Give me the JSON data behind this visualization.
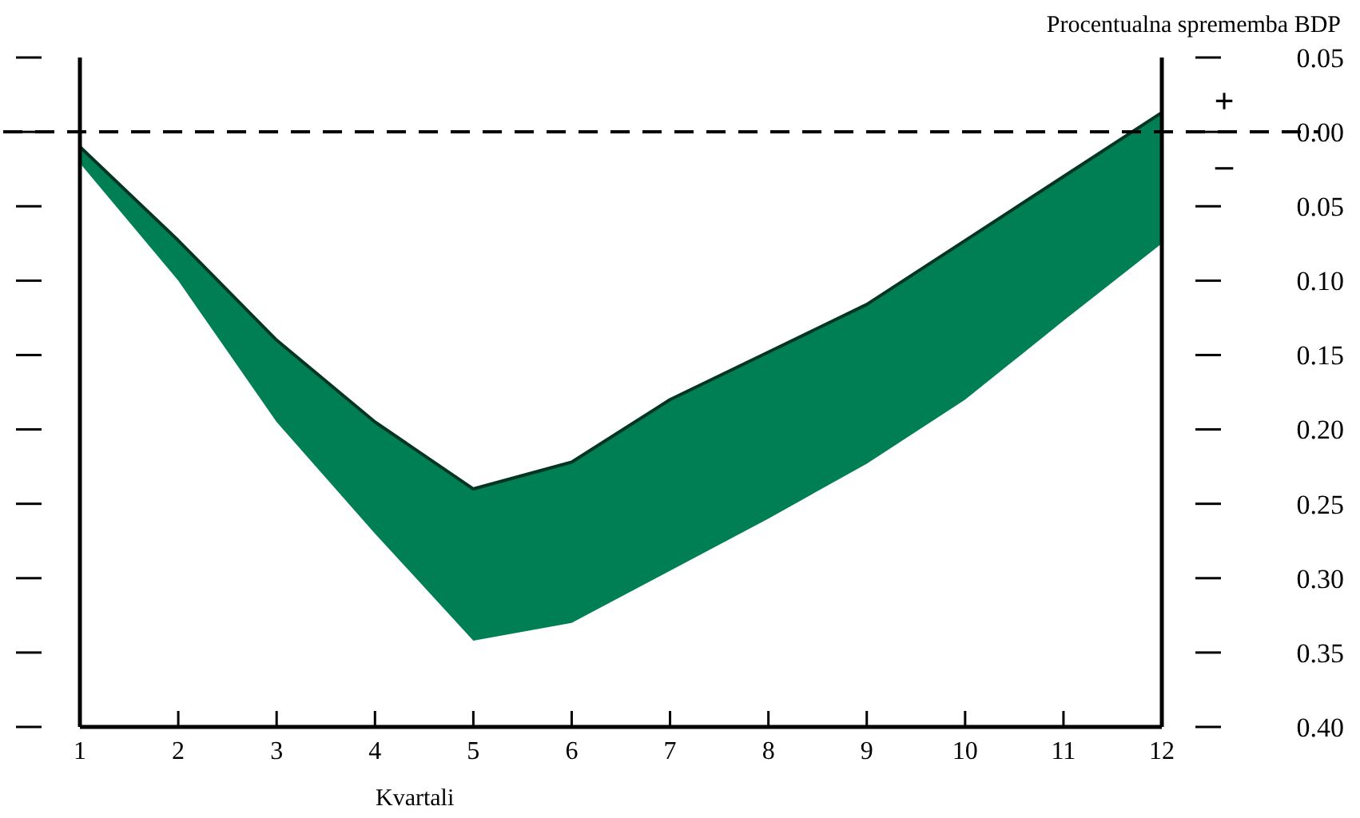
{
  "chart_data": {
    "type": "line",
    "ylabel": "Procentualna sprememba BDP",
    "xlabel": "Kvartali",
    "x": [
      1,
      2,
      3,
      4,
      5,
      6,
      7,
      8,
      9,
      10,
      11,
      12
    ],
    "series": [
      {
        "color": "#003423",
        "values": [
          -0.01,
          -0.073,
          -0.14,
          -0.195,
          -0.24,
          -0.222,
          -0.18,
          -0.148,
          -0.116,
          -0.073,
          -0.03,
          0.013
        ],
        "upper": [
          -0.01,
          -0.073,
          -0.14,
          -0.195,
          -0.24,
          -0.222,
          -0.18,
          -0.148,
          -0.116,
          -0.073,
          -0.03,
          0.013
        ],
        "lower": [
          -0.021,
          -0.1,
          -0.195,
          -0.27,
          -0.342,
          -0.33,
          -0.295,
          -0.26,
          -0.223,
          -0.18,
          -0.127,
          -0.075
        ]
      }
    ],
    "xlim": [
      1,
      12
    ],
    "xticks": [
      1,
      2,
      3,
      4,
      5,
      6,
      7,
      8,
      9,
      10,
      11,
      12
    ],
    "ylim": [
      -0.4,
      0.05
    ],
    "yticks": [
      {
        "value": 0.05,
        "label": "0.05"
      },
      {
        "value": 0,
        "label": "0.00"
      },
      {
        "value": -0.05,
        "label": "0.05"
      },
      {
        "value": -0.1,
        "label": "0.10"
      },
      {
        "value": -0.15,
        "label": "0.15"
      },
      {
        "value": -0.2,
        "label": "0.20"
      },
      {
        "value": -0.25,
        "label": "0.25"
      },
      {
        "value": -0.3,
        "label": "0.30"
      },
      {
        "value": -0.35,
        "label": "0.35"
      },
      {
        "value": -0.4,
        "label": "0.40"
      }
    ],
    "ref_lines": [
      {
        "axis": "y",
        "value": 0,
        "line_style": "dashed",
        "color": "#000000"
      }
    ],
    "annotations": [
      "+",
      "–"
    ],
    "grid": false
  }
}
